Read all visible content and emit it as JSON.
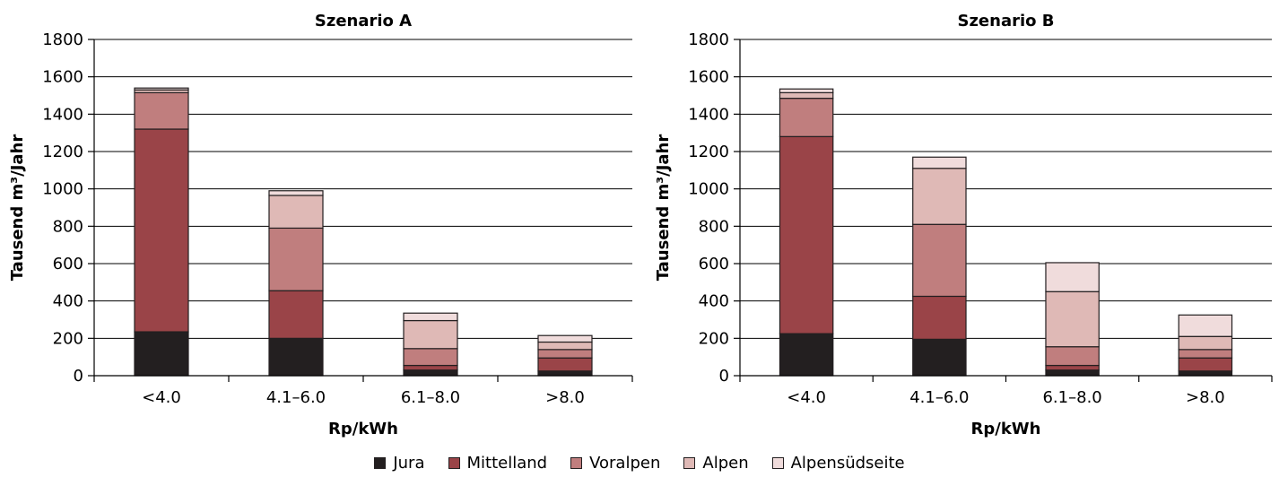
{
  "chart_data": [
    {
      "type": "bar",
      "stacked": true,
      "title": "Szenario A",
      "xlabel": "Rp/kWh",
      "ylabel": "Tausend m³/Jahr",
      "ylim": [
        0,
        1800
      ],
      "yticks": [
        0,
        200,
        400,
        600,
        800,
        1000,
        1200,
        1400,
        1600,
        1800
      ],
      "grid": true,
      "categories": [
        "<4.0",
        "4.1–6.0",
        "6.1–8.0",
        ">8.0"
      ],
      "series": [
        {
          "name": "Jura",
          "color": "#231f20",
          "values": [
            235,
            200,
            30,
            25
          ]
        },
        {
          "name": "Mittelland",
          "color": "#9a4448",
          "values": [
            1085,
            255,
            25,
            70
          ]
        },
        {
          "name": "Voralpen",
          "color": "#c07e7e",
          "values": [
            195,
            335,
            90,
            45
          ]
        },
        {
          "name": "Alpen",
          "color": "#dfb9b6",
          "values": [
            15,
            175,
            150,
            40
          ]
        },
        {
          "name": "Alpensüdseite",
          "color": "#f0dcdc",
          "values": [
            10,
            25,
            40,
            35
          ]
        }
      ]
    },
    {
      "type": "bar",
      "stacked": true,
      "title": "Szenario B",
      "xlabel": "Rp/kWh",
      "ylabel": "Tausend m³/Jahr",
      "ylim": [
        0,
        1800
      ],
      "yticks": [
        0,
        200,
        400,
        600,
        800,
        1000,
        1200,
        1400,
        1600,
        1800
      ],
      "grid": true,
      "categories": [
        "<4.0",
        "4.1–6.0",
        "6.1–8.0",
        ">8.0"
      ],
      "series": [
        {
          "name": "Jura",
          "color": "#231f20",
          "values": [
            225,
            195,
            30,
            25
          ]
        },
        {
          "name": "Mittelland",
          "color": "#9a4448",
          "values": [
            1055,
            230,
            25,
            70
          ]
        },
        {
          "name": "Voralpen",
          "color": "#c07e7e",
          "values": [
            205,
            385,
            100,
            45
          ]
        },
        {
          "name": "Alpen",
          "color": "#dfb9b6",
          "values": [
            30,
            300,
            295,
            70
          ]
        },
        {
          "name": "Alpensüdseite",
          "color": "#f0dcdc",
          "values": [
            20,
            60,
            155,
            115
          ]
        }
      ]
    }
  ],
  "legend": {
    "placement": "bottom",
    "items": [
      {
        "label": "Jura",
        "color": "#231f20"
      },
      {
        "label": "Mittelland",
        "color": "#9a4448"
      },
      {
        "label": "Voralpen",
        "color": "#c07e7e"
      },
      {
        "label": "Alpen",
        "color": "#dfb9b6"
      },
      {
        "label": "Alpensüdseite",
        "color": "#f0dcdc"
      }
    ]
  }
}
